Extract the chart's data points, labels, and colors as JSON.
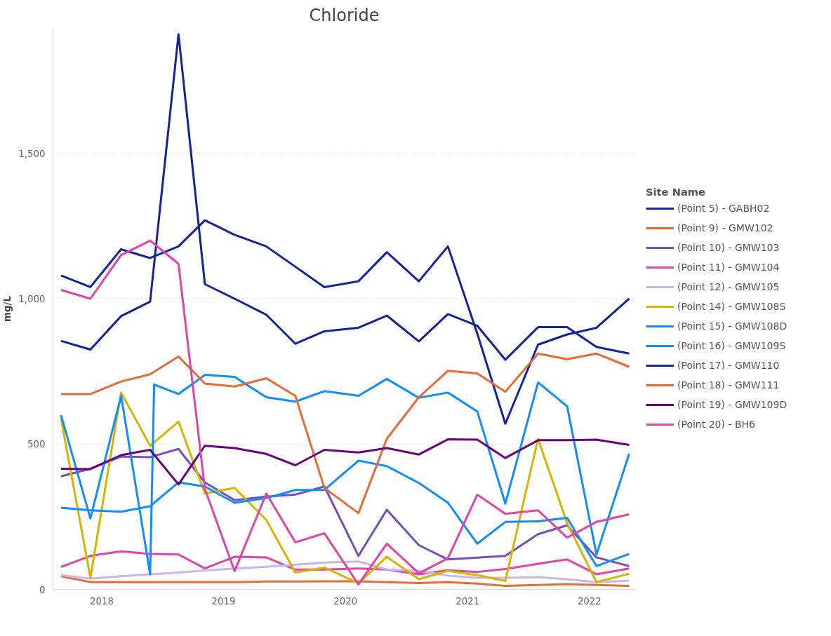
{
  "chart_data": {
    "type": "line",
    "title": "Chloride",
    "ylabel": "mg/L",
    "legend_title": "Site Name",
    "legend": "right",
    "grid": "y",
    "line_style": "solid",
    "marker": "none",
    "x": [
      "2017-09-01",
      "2017-11-28",
      "2018-02-28",
      "2018-05-26",
      "2018-08-19",
      "2018-11-06",
      "2019-02-03",
      "2019-05-09",
      "2019-08-04",
      "2019-10-30",
      "2020-02-09",
      "2020-05-04",
      "2020-08-08",
      "2020-11-03",
      "2021-01-30",
      "2021-04-24",
      "2021-07-31",
      "2021-10-26",
      "2022-01-22",
      "2022-04-30"
    ],
    "xlim": [
      "2017-08-08",
      "2022-05-19"
    ],
    "xticks": [
      "2018",
      "2019",
      "2020",
      "2021",
      "2022"
    ],
    "ylim": [
      0,
      1930
    ],
    "yticks": [
      0,
      500,
      {
        "value": 1000,
        "label": "1,000"
      },
      {
        "value": 1500,
        "label": "1,500"
      }
    ],
    "series": [
      {
        "name": "(Point 5) - GABH02",
        "color": "#12239e",
        "values": [
          855,
          825,
          940,
          990,
          1910,
          1050,
          1000,
          945,
          845,
          888,
          900,
          942,
          853,
          947,
          907,
          790,
          902,
          902,
          834,
          811
        ]
      },
      {
        "name": "(Point 9) - GMW102",
        "color": "#e66c37",
        "values": [
          45,
          25,
          25,
          25,
          25,
          25,
          25,
          27,
          27,
          28,
          28,
          25,
          22,
          25,
          20,
          12,
          15,
          18,
          15,
          12
        ]
      },
      {
        "name": "(Point 10) - GMW103",
        "color": "#744ec2",
        "values": [
          389,
          415,
          457,
          455,
          483,
          368,
          307,
          319,
          326,
          354,
          115,
          274,
          152,
          103,
          109,
          115,
          190,
          220,
          110,
          80
        ]
      },
      {
        "name": "(Point 11) - GMW104",
        "color": "#e044a7",
        "values": [
          77,
          115,
          131,
          122,
          120,
          72,
          112,
          110,
          68,
          68,
          72,
          68,
          52,
          66,
          60,
          70,
          88,
          103,
          52,
          72
        ]
      },
      {
        "name": "(Point 12) - GMW105",
        "color": "#c8b8ea",
        "values": [
          49,
          37,
          45,
          52,
          58,
          65,
          72,
          78,
          85,
          92,
          96,
          68,
          64,
          47,
          40,
          40,
          42,
          35,
          25,
          30
        ]
      },
      {
        "name": "(Point 14) - GMW108S",
        "color": "#d9b300",
        "values": [
          588,
          40,
          677,
          494,
          577,
          330,
          349,
          239,
          58,
          75,
          21,
          112,
          35,
          64,
          49,
          29,
          518,
          228,
          25,
          54
        ]
      },
      {
        "name": "(Point 15) - GMW108D",
        "color": "#118dff",
        "values": [
          281,
          272,
          267,
          286,
          368,
          354,
          298,
          314,
          342,
          342,
          443,
          424,
          366,
          298,
          157,
          232,
          234,
          246,
          80,
          122
        ]
      },
      {
        "name": "(Point 16) - GMW109S",
        "color": "#118dff",
        "x": [
          "2017-09-01",
          "2017-11-28",
          "2018-02-28",
          "2018-05-26",
          "2018-06-07",
          "2018-08-19",
          "2018-11-06",
          "2019-02-03",
          "2019-05-09",
          "2019-08-04",
          "2019-10-30",
          "2020-02-09",
          "2020-05-04",
          "2020-08-08",
          "2020-11-03",
          "2021-01-30",
          "2021-04-24",
          "2021-07-31",
          "2021-10-26",
          "2022-01-22",
          "2022-04-30"
        ],
        "values": [
          600,
          244,
          666,
          52,
          705,
          672,
          738,
          731,
          661,
          646,
          682,
          666,
          724,
          659,
          677,
          612,
          295,
          712,
          630,
          120,
          467
        ]
      },
      {
        "name": "(Point 17) - GMW110",
        "color": "#12239e",
        "values": [
          1080,
          1040,
          1170,
          1140,
          1180,
          1270,
          1220,
          1180,
          1110,
          1040,
          1060,
          1160,
          1060,
          1180,
          880,
          570,
          842,
          877,
          900,
          1000
        ]
      },
      {
        "name": "(Point 18) - GMW111",
        "color": "#e66c37",
        "values": [
          672,
          672,
          715,
          740,
          801,
          708,
          698,
          726,
          666,
          349,
          262,
          518,
          661,
          752,
          743,
          680,
          811,
          792,
          811,
          766
        ]
      },
      {
        "name": "(Point 19) - GMW109D",
        "color": "#6b007b",
        "values": [
          415,
          414,
          462,
          480,
          361,
          494,
          486,
          466,
          427,
          480,
          471,
          486,
          464,
          516,
          515,
          452,
          513,
          513,
          515,
          497
        ]
      },
      {
        "name": "(Point 20) - BH6",
        "color": "#e044a7",
        "values": [
          1030,
          1000,
          1150,
          1200,
          1120,
          345,
          63,
          330,
          162,
          193,
          17,
          157,
          55,
          107,
          326,
          260,
          272,
          178,
          232,
          258
        ]
      }
    ]
  }
}
